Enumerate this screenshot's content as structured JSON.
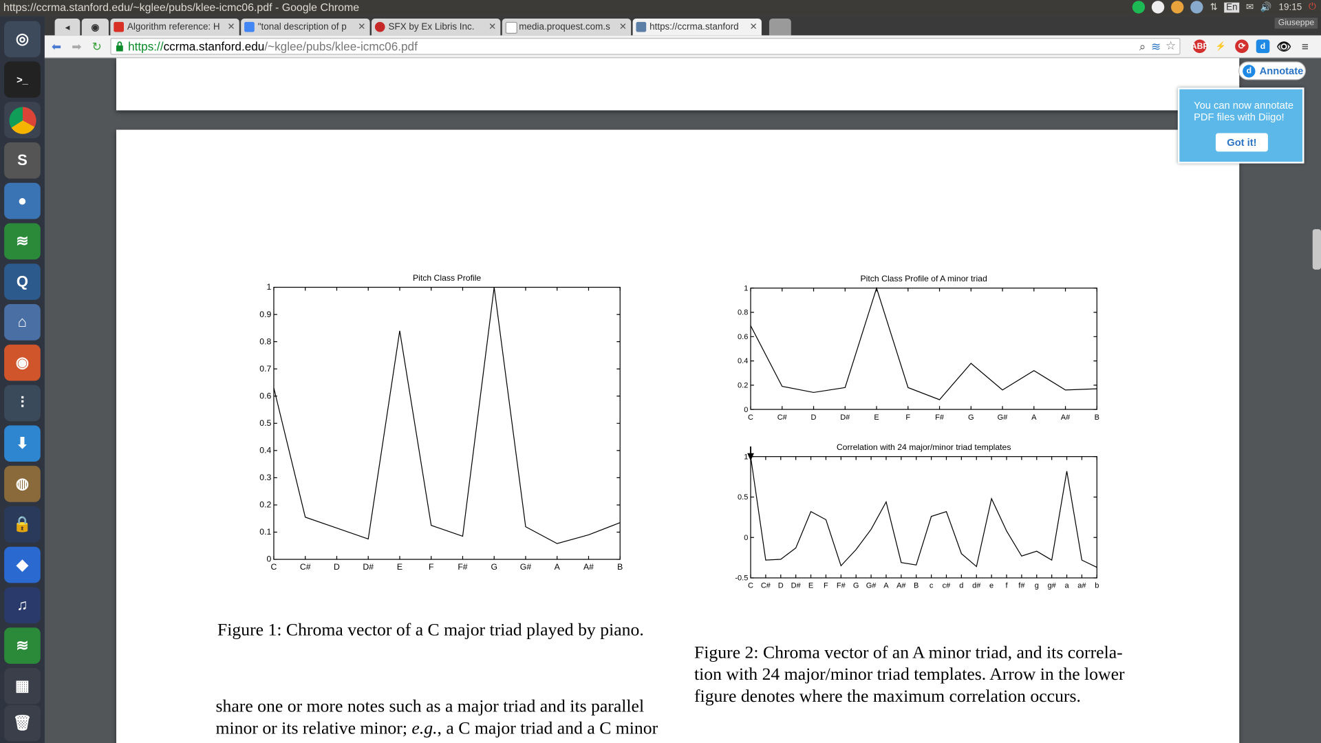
{
  "window": {
    "title": "https://ccrma.stanford.edu/~kglee/pubs/klee-icmc06.pdf - Google Chrome"
  },
  "tray": {
    "lang": "En",
    "clock": "19:15"
  },
  "user": "Giuseppe",
  "tabs": [
    {
      "label": "Algorithm reference: H",
      "color": "#d93025"
    },
    {
      "label": "\"tonal description of p",
      "color": "#4285f4"
    },
    {
      "label": "SFX by Ex Libris Inc.",
      "color": "#c62828"
    },
    {
      "label": "media.proquest.com.s",
      "color": "#9e9e9e"
    },
    {
      "label": "https://ccrma.stanford",
      "color": "#5c7fa8"
    }
  ],
  "omnibox": {
    "scheme": "https://",
    "host": "ccrma.stanford.edu",
    "path": "/~kglee/pubs/klee-icmc06.pdf"
  },
  "extensions": [
    "abp-icon",
    "flash-icon",
    "sync-icon",
    "diigo-icon",
    "eye-icon",
    "menu-icon"
  ],
  "diigo": {
    "annotate_label": "Annotate",
    "popup_text": "You can now annotate PDF files with Diigo!",
    "got_it": "Got it!"
  },
  "chart_data": [
    {
      "type": "line",
      "title": "Pitch Class Profile",
      "categories": [
        "C",
        "C#",
        "D",
        "D#",
        "E",
        "F",
        "F#",
        "G",
        "G#",
        "A",
        "A#",
        "B"
      ],
      "values": [
        0.63,
        0.155,
        0.115,
        0.075,
        0.84,
        0.125,
        0.085,
        1.0,
        0.12,
        0.058,
        0.09,
        0.135
      ],
      "ylim": [
        0,
        1
      ],
      "yticks": [
        "0",
        "0.1",
        "0.2",
        "0.3",
        "0.4",
        "0.5",
        "0.6",
        "0.7",
        "0.8",
        "0.9",
        "1"
      ]
    },
    {
      "type": "line",
      "title": "Pitch Class Profile of A minor triad",
      "categories": [
        "C",
        "C#",
        "D",
        "D#",
        "E",
        "F",
        "F#",
        "G",
        "G#",
        "A",
        "A#",
        "B"
      ],
      "values": [
        0.69,
        0.19,
        0.14,
        0.18,
        1.0,
        0.18,
        0.08,
        0.38,
        0.16,
        0.32,
        0.16,
        0.17
      ],
      "ylim": [
        0,
        1
      ],
      "yticks": [
        "0",
        "0.2",
        "0.4",
        "0.6",
        "0.8",
        "1"
      ]
    },
    {
      "type": "line",
      "title": "Correlation with 24 major/minor triad templates",
      "categories": [
        "C",
        "C#",
        "D",
        "D#",
        "E",
        "F",
        "F#",
        "G",
        "G#",
        "A",
        "A#",
        "B",
        "c",
        "c#",
        "d",
        "d#",
        "e",
        "f",
        "f#",
        "g",
        "g#",
        "a",
        "a#",
        "b"
      ],
      "values": [
        1.0,
        -0.28,
        -0.27,
        -0.13,
        0.32,
        0.22,
        -0.35,
        -0.15,
        0.1,
        0.44,
        -0.31,
        -0.34,
        0.26,
        0.32,
        -0.2,
        -0.36,
        0.48,
        0.08,
        -0.23,
        -0.17,
        -0.28,
        0.82,
        -0.28,
        -0.37
      ],
      "ylim": [
        -0.5,
        1
      ],
      "yticks": [
        "-0.5",
        "0",
        "0.5",
        "1"
      ],
      "annotation": "arrow at maximum (C)"
    }
  ],
  "captions": {
    "fig1": "Figure 1: Chroma vector of a C major triad played by piano.",
    "fig2_l1": "Figure 2: Chroma vector of an A minor triad, and its correla-",
    "fig2_l2": "tion with 24 major/minor triad templates. Arrow in the lower",
    "fig2_l3": "figure denotes where the maximum correlation occurs.",
    "body_l1": "share one or more notes such as a major triad and its parallel",
    "body_l2a": "minor or its relative minor; ",
    "body_l2b": "e.g.",
    "body_l2c": ", a C major triad and a C minor"
  }
}
